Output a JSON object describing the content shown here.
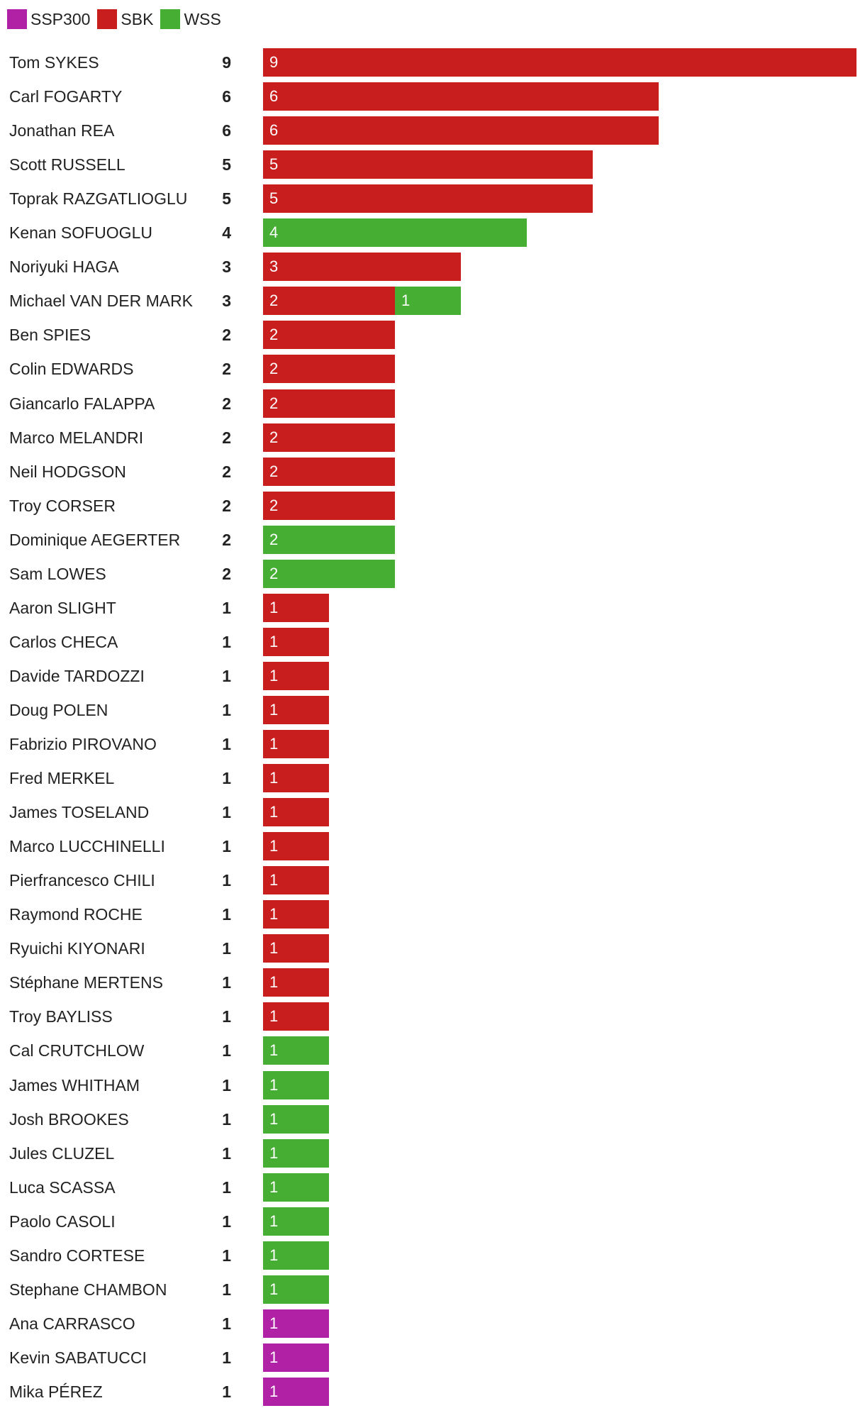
{
  "chart_data": {
    "type": "bar",
    "orientation": "horizontal",
    "stacked": true,
    "legend": {
      "position": "top-left",
      "entries": [
        {
          "name": "SSP300",
          "color": "#b021a6"
        },
        {
          "name": "SBK",
          "color": "#c81e1e"
        },
        {
          "name": "WSS",
          "color": "#45ae33"
        }
      ]
    },
    "xlim": [
      0,
      9
    ],
    "rows": [
      {
        "name": "Tom SYKES",
        "total": 9,
        "segments": [
          {
            "series": "SBK",
            "value": 9
          }
        ]
      },
      {
        "name": "Carl FOGARTY",
        "total": 6,
        "segments": [
          {
            "series": "SBK",
            "value": 6
          }
        ]
      },
      {
        "name": "Jonathan REA",
        "total": 6,
        "segments": [
          {
            "series": "SBK",
            "value": 6
          }
        ]
      },
      {
        "name": "Scott RUSSELL",
        "total": 5,
        "segments": [
          {
            "series": "SBK",
            "value": 5
          }
        ]
      },
      {
        "name": "Toprak RAZGATLIOGLU",
        "total": 5,
        "segments": [
          {
            "series": "SBK",
            "value": 5
          }
        ]
      },
      {
        "name": "Kenan SOFUOGLU",
        "total": 4,
        "segments": [
          {
            "series": "WSS",
            "value": 4
          }
        ]
      },
      {
        "name": "Noriyuki HAGA",
        "total": 3,
        "segments": [
          {
            "series": "SBK",
            "value": 3
          }
        ]
      },
      {
        "name": "Michael VAN DER MARK",
        "total": 3,
        "segments": [
          {
            "series": "SBK",
            "value": 2
          },
          {
            "series": "WSS",
            "value": 1
          }
        ]
      },
      {
        "name": "Ben SPIES",
        "total": 2,
        "segments": [
          {
            "series": "SBK",
            "value": 2
          }
        ]
      },
      {
        "name": "Colin EDWARDS",
        "total": 2,
        "segments": [
          {
            "series": "SBK",
            "value": 2
          }
        ]
      },
      {
        "name": "Giancarlo FALAPPA",
        "total": 2,
        "segments": [
          {
            "series": "SBK",
            "value": 2
          }
        ]
      },
      {
        "name": "Marco MELANDRI",
        "total": 2,
        "segments": [
          {
            "series": "SBK",
            "value": 2
          }
        ]
      },
      {
        "name": "Neil HODGSON",
        "total": 2,
        "segments": [
          {
            "series": "SBK",
            "value": 2
          }
        ]
      },
      {
        "name": "Troy CORSER",
        "total": 2,
        "segments": [
          {
            "series": "SBK",
            "value": 2
          }
        ]
      },
      {
        "name": "Dominique AEGERTER",
        "total": 2,
        "segments": [
          {
            "series": "WSS",
            "value": 2
          }
        ]
      },
      {
        "name": "Sam LOWES",
        "total": 2,
        "segments": [
          {
            "series": "WSS",
            "value": 2
          }
        ]
      },
      {
        "name": "Aaron SLIGHT",
        "total": 1,
        "segments": [
          {
            "series": "SBK",
            "value": 1
          }
        ]
      },
      {
        "name": "Carlos CHECA",
        "total": 1,
        "segments": [
          {
            "series": "SBK",
            "value": 1
          }
        ]
      },
      {
        "name": "Davide TARDOZZI",
        "total": 1,
        "segments": [
          {
            "series": "SBK",
            "value": 1
          }
        ]
      },
      {
        "name": "Doug POLEN",
        "total": 1,
        "segments": [
          {
            "series": "SBK",
            "value": 1
          }
        ]
      },
      {
        "name": "Fabrizio PIROVANO",
        "total": 1,
        "segments": [
          {
            "series": "SBK",
            "value": 1
          }
        ]
      },
      {
        "name": "Fred MERKEL",
        "total": 1,
        "segments": [
          {
            "series": "SBK",
            "value": 1
          }
        ]
      },
      {
        "name": "James TOSELAND",
        "total": 1,
        "segments": [
          {
            "series": "SBK",
            "value": 1
          }
        ]
      },
      {
        "name": "Marco LUCCHINELLI",
        "total": 1,
        "segments": [
          {
            "series": "SBK",
            "value": 1
          }
        ]
      },
      {
        "name": "Pierfrancesco CHILI",
        "total": 1,
        "segments": [
          {
            "series": "SBK",
            "value": 1
          }
        ]
      },
      {
        "name": "Raymond ROCHE",
        "total": 1,
        "segments": [
          {
            "series": "SBK",
            "value": 1
          }
        ]
      },
      {
        "name": "Ryuichi KIYONARI",
        "total": 1,
        "segments": [
          {
            "series": "SBK",
            "value": 1
          }
        ]
      },
      {
        "name": "Stéphane MERTENS",
        "total": 1,
        "segments": [
          {
            "series": "SBK",
            "value": 1
          }
        ]
      },
      {
        "name": "Troy BAYLISS",
        "total": 1,
        "segments": [
          {
            "series": "SBK",
            "value": 1
          }
        ]
      },
      {
        "name": "Cal CRUTCHLOW",
        "total": 1,
        "segments": [
          {
            "series": "WSS",
            "value": 1
          }
        ]
      },
      {
        "name": "James WHITHAM",
        "total": 1,
        "segments": [
          {
            "series": "WSS",
            "value": 1
          }
        ]
      },
      {
        "name": "Josh BROOKES",
        "total": 1,
        "segments": [
          {
            "series": "WSS",
            "value": 1
          }
        ]
      },
      {
        "name": "Jules CLUZEL",
        "total": 1,
        "segments": [
          {
            "series": "WSS",
            "value": 1
          }
        ]
      },
      {
        "name": "Luca SCASSA",
        "total": 1,
        "segments": [
          {
            "series": "WSS",
            "value": 1
          }
        ]
      },
      {
        "name": "Paolo CASOLI",
        "total": 1,
        "segments": [
          {
            "series": "WSS",
            "value": 1
          }
        ]
      },
      {
        "name": "Sandro CORTESE",
        "total": 1,
        "segments": [
          {
            "series": "WSS",
            "value": 1
          }
        ]
      },
      {
        "name": "Stephane CHAMBON",
        "total": 1,
        "segments": [
          {
            "series": "WSS",
            "value": 1
          }
        ]
      },
      {
        "name": "Ana CARRASCO",
        "total": 1,
        "segments": [
          {
            "series": "SSP300",
            "value": 1
          }
        ]
      },
      {
        "name": "Kevin SABATUCCI",
        "total": 1,
        "segments": [
          {
            "series": "SSP300",
            "value": 1
          }
        ]
      },
      {
        "name": "Mika PÉREZ",
        "total": 1,
        "segments": [
          {
            "series": "SSP300",
            "value": 1
          }
        ]
      }
    ]
  }
}
